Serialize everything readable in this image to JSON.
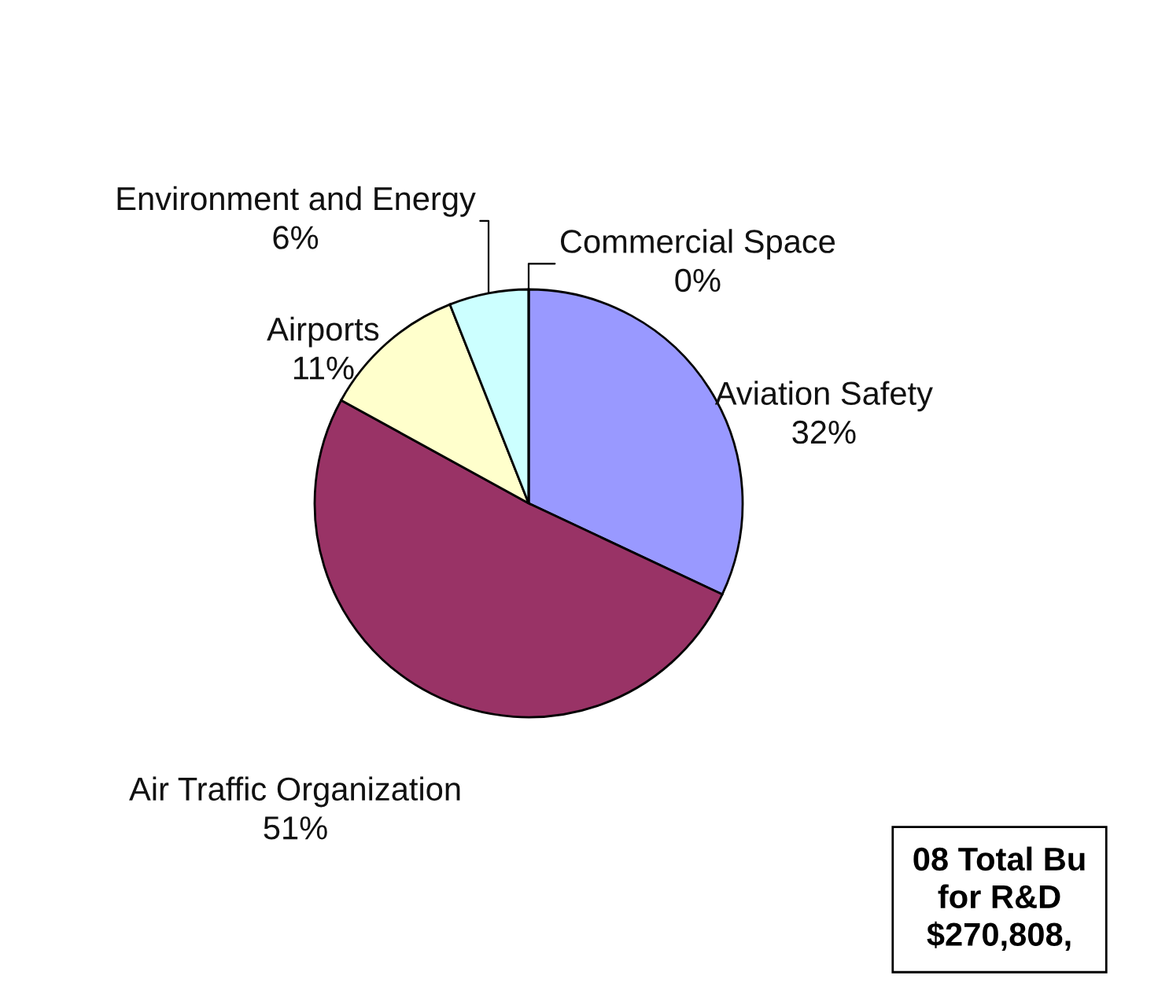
{
  "chart_data": {
    "type": "pie",
    "categories": [
      "Aviation Safety",
      "Air Traffic Organization",
      "Airports",
      "Environment and Energy",
      "Commercial Space"
    ],
    "values": [
      32,
      51,
      11,
      6,
      0
    ],
    "colors": [
      "#9999ff",
      "#993366",
      "#ffffcc",
      "#ccffff",
      "#660066"
    ],
    "value_labels": [
      "32%",
      "51%",
      "11%",
      "6%",
      "0%"
    ],
    "legend": false,
    "annotations": [
      "08 Total Bu\nfor R&D\n$270,808,"
    ]
  }
}
